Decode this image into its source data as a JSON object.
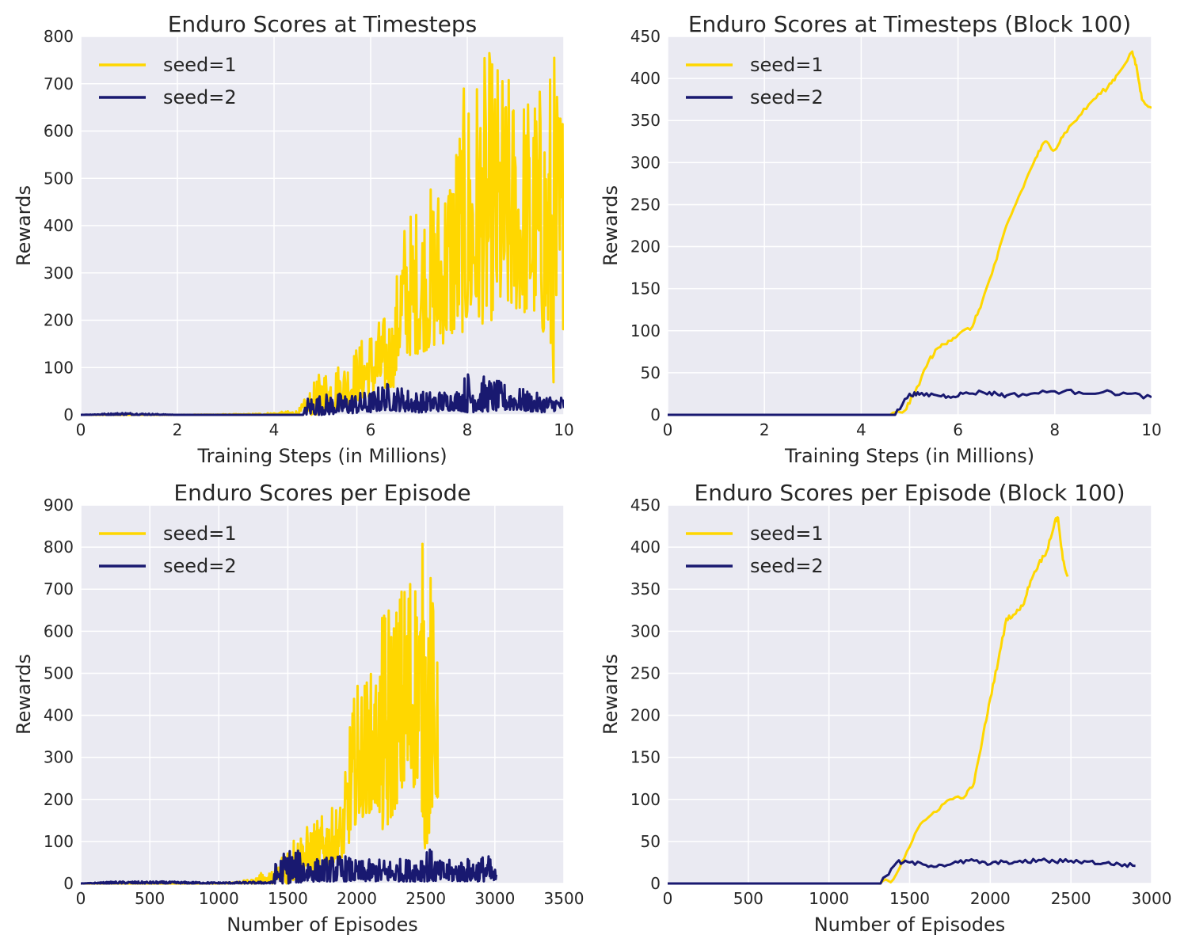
{
  "chart_data": [
    {
      "type": "line",
      "title": "Enduro Scores at Timesteps",
      "xlabel": "Training Steps (in Millions)",
      "ylabel": "Rewards",
      "xlim": [
        0,
        10
      ],
      "ylim": [
        0,
        800
      ],
      "xticks": [
        0,
        2,
        4,
        6,
        8,
        10
      ],
      "yticks": [
        0,
        100,
        200,
        300,
        400,
        500,
        600,
        700,
        800
      ],
      "grid": true,
      "legend": "top-left",
      "series": [
        {
          "name": "seed=1",
          "color": "#FFD700",
          "x": [
            0,
            2,
            3.5,
            4.0,
            4.5,
            5.0,
            5.5,
            6.0,
            6.5,
            6.6,
            7.0,
            7.5,
            8.0,
            8.5,
            9.0,
            9.5,
            9.8,
            10.0
          ],
          "low": [
            0,
            0,
            0,
            0,
            0,
            0,
            20,
            40,
            60,
            120,
            130,
            150,
            180,
            200,
            220,
            200,
            60,
            190
          ],
          "high": [
            0,
            0,
            2,
            5,
            10,
            100,
            120,
            190,
            230,
            410,
            460,
            520,
            720,
            780,
            700,
            710,
            790,
            690
          ]
        },
        {
          "name": "seed=2",
          "color": "#191970",
          "x": [
            0,
            0.9,
            2,
            4.6,
            4.7,
            5.0,
            6.0,
            6.3,
            7.0,
            7.8,
            8.0,
            9.0,
            9.5,
            10.0
          ],
          "low": [
            0,
            0,
            0,
            0,
            0,
            0,
            5,
            10,
            5,
            10,
            5,
            10,
            5,
            10
          ],
          "high": [
            0,
            5,
            0,
            0,
            40,
            45,
            50,
            70,
            50,
            55,
            95,
            60,
            45,
            40
          ]
        }
      ]
    },
    {
      "type": "line",
      "title": "Enduro Scores at Timesteps (Block 100)",
      "xlabel": "Training Steps (in Millions)",
      "ylabel": "Rewards",
      "xlim": [
        0,
        10
      ],
      "ylim": [
        0,
        450
      ],
      "xticks": [
        0,
        2,
        4,
        6,
        8,
        10
      ],
      "yticks": [
        0,
        50,
        100,
        150,
        200,
        250,
        300,
        350,
        400,
        450
      ],
      "grid": true,
      "legend": "top-left",
      "series": [
        {
          "name": "seed=1",
          "color": "#FFD700",
          "x": [
            0,
            4.6,
            4.9,
            5.1,
            5.4,
            5.6,
            5.8,
            6.0,
            6.3,
            6.5,
            6.8,
            7.0,
            7.3,
            7.6,
            7.8,
            8.0,
            8.2,
            8.5,
            8.8,
            9.1,
            9.3,
            9.6,
            9.7,
            9.8,
            10.0
          ],
          "y": [
            0,
            0,
            5,
            25,
            65,
            80,
            88,
            95,
            105,
            135,
            185,
            225,
            265,
            305,
            325,
            315,
            335,
            355,
            375,
            390,
            405,
            432,
            410,
            375,
            365
          ]
        },
        {
          "name": "seed=2",
          "color": "#191970",
          "x": [
            0,
            4.7,
            5.0,
            5.2,
            5.5,
            5.8,
            6.1,
            6.5,
            6.8,
            7.0,
            7.5,
            8.0,
            8.5,
            9.0,
            9.5,
            10.0
          ],
          "y": [
            0,
            0,
            25,
            24,
            24,
            22,
            25,
            27,
            25,
            23,
            25,
            28,
            27,
            27,
            25,
            21
          ]
        }
      ]
    },
    {
      "type": "line",
      "title": "Enduro Scores per Episode",
      "xlabel": "Number of Episodes",
      "ylabel": "Rewards",
      "xlim": [
        0,
        3500
      ],
      "ylim": [
        0,
        900
      ],
      "xticks": [
        0,
        500,
        1000,
        1500,
        2000,
        2500,
        3000,
        3500
      ],
      "yticks": [
        0,
        100,
        200,
        300,
        400,
        500,
        600,
        700,
        800,
        900
      ],
      "grid": true,
      "legend": "top-left",
      "series": [
        {
          "name": "seed=1",
          "color": "#FFD700",
          "x": [
            0,
            1000,
            1250,
            1300,
            1400,
            1500,
            1700,
            1900,
            1950,
            2000,
            2150,
            2200,
            2300,
            2400,
            2450,
            2500,
            2550,
            2590
          ],
          "low": [
            0,
            0,
            0,
            0,
            0,
            0,
            30,
            60,
            100,
            150,
            180,
            100,
            200,
            220,
            250,
            60,
            180,
            200
          ],
          "high": [
            0,
            0,
            10,
            25,
            30,
            110,
            150,
            200,
            400,
            480,
            520,
            690,
            700,
            810,
            750,
            890,
            700,
            500
          ]
        },
        {
          "name": "seed=2",
          "color": "#191970",
          "x": [
            0,
            250,
            600,
            1000,
            1390,
            1400,
            1500,
            1700,
            1900,
            2000,
            2200,
            2400,
            2500,
            2600,
            2800,
            2950,
            3010
          ],
          "low": [
            0,
            0,
            0,
            0,
            0,
            0,
            0,
            5,
            5,
            5,
            5,
            5,
            5,
            5,
            5,
            5,
            0
          ],
          "high": [
            0,
            5,
            5,
            3,
            5,
            45,
            90,
            60,
            70,
            55,
            60,
            60,
            95,
            55,
            60,
            70,
            30
          ]
        }
      ]
    },
    {
      "type": "line",
      "title": "Enduro Scores per Episode (Block 100)",
      "xlabel": "Number of Episodes",
      "ylabel": "Rewards",
      "xlim": [
        0,
        3000
      ],
      "ylim": [
        0,
        450
      ],
      "xticks": [
        0,
        500,
        1000,
        1500,
        2000,
        2500,
        3000
      ],
      "yticks": [
        0,
        50,
        100,
        150,
        200,
        250,
        300,
        350,
        400,
        450
      ],
      "grid": true,
      "legend": "top-left",
      "series": [
        {
          "name": "seed=1",
          "color": "#FFD700",
          "x": [
            0,
            1300,
            1400,
            1450,
            1550,
            1650,
            1750,
            1850,
            1900,
            1950,
            2000,
            2050,
            2100,
            2150,
            2200,
            2250,
            2300,
            2350,
            2400,
            2420,
            2450,
            2480
          ],
          "y": [
            0,
            0,
            5,
            25,
            65,
            85,
            100,
            105,
            120,
            170,
            220,
            265,
            315,
            320,
            330,
            360,
            380,
            395,
            430,
            435,
            385,
            365
          ]
        },
        {
          "name": "seed=2",
          "color": "#191970",
          "x": [
            0,
            1320,
            1420,
            1500,
            1600,
            1700,
            1800,
            1900,
            2000,
            2100,
            2200,
            2300,
            2400,
            2500,
            2600,
            2700,
            2800,
            2900
          ],
          "y": [
            0,
            0,
            25,
            25,
            22,
            22,
            25,
            27,
            23,
            26,
            25,
            28,
            26,
            27,
            26,
            24,
            23,
            21
          ]
        }
      ]
    }
  ]
}
